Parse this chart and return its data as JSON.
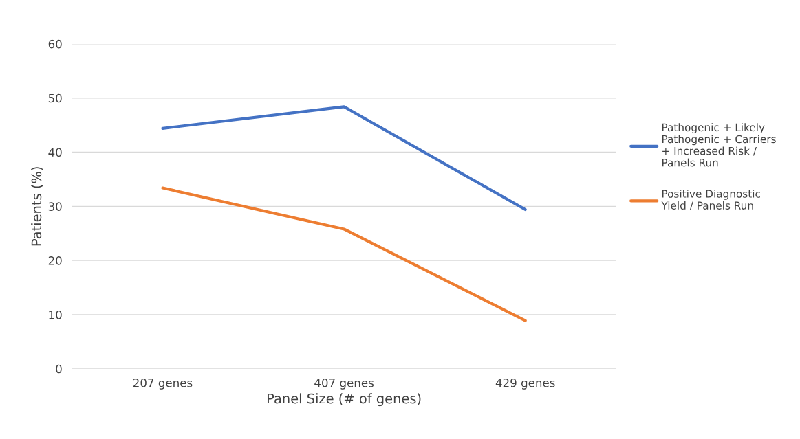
{
  "chart_data": {
    "type": "line",
    "xlabel": "Panel Size (# of genes)",
    "ylabel": "Patients (%)",
    "categories": [
      "207 genes",
      "407 genes",
      "429 genes"
    ],
    "series": [
      {
        "name": "Pathogenic + Likely Pathogenic + Carriers + Increased Risk / Panels Run",
        "color": "#4472c4",
        "values": [
          44.4,
          48.4,
          29.4
        ]
      },
      {
        "name": "Positive Diagnostic Yield / Panels Run",
        "color": "#ed7d31",
        "values": [
          33.4,
          25.8,
          8.9
        ]
      }
    ],
    "ylim": [
      0,
      60
    ],
    "yticks": [
      0,
      10,
      20,
      30,
      40,
      50,
      60
    ],
    "grid": "y",
    "legend": "right",
    "marker": "none",
    "line_style": "solid"
  }
}
